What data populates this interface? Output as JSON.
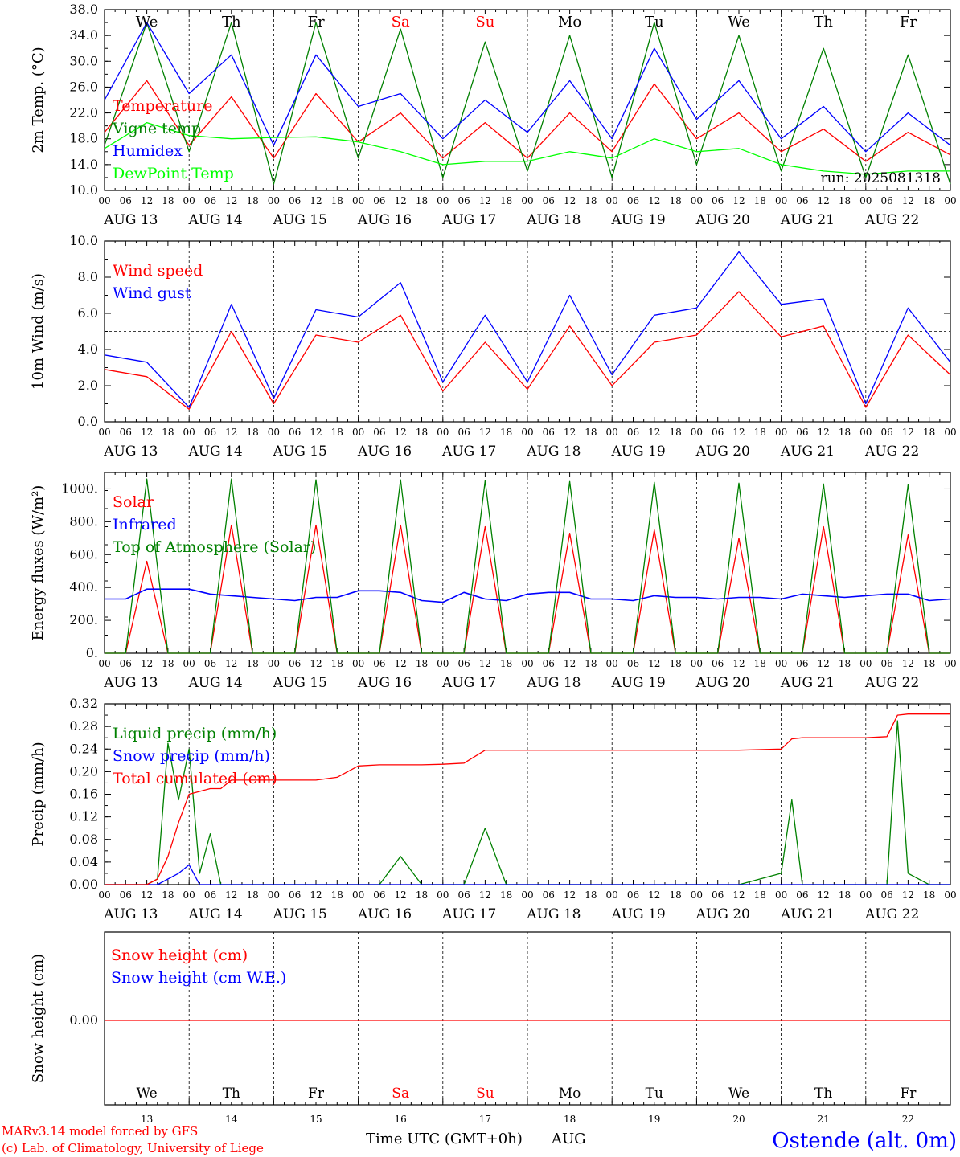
{
  "days": [
    {
      "dow": "We",
      "date": "AUG 13",
      "num": "13",
      "weekend": false
    },
    {
      "dow": "Th",
      "date": "AUG 14",
      "num": "14",
      "weekend": false
    },
    {
      "dow": "Fr",
      "date": "AUG 15",
      "num": "15",
      "weekend": false
    },
    {
      "dow": "Sa",
      "date": "AUG 16",
      "num": "16",
      "weekend": true
    },
    {
      "dow": "Su",
      "date": "AUG 17",
      "num": "17",
      "weekend": true
    },
    {
      "dow": "Mo",
      "date": "AUG 18",
      "num": "18",
      "weekend": false
    },
    {
      "dow": "Tu",
      "date": "AUG 19",
      "num": "19",
      "weekend": false
    },
    {
      "dow": "We",
      "date": "AUG 20",
      "num": "20",
      "weekend": false
    },
    {
      "dow": "Th",
      "date": "AUG 21",
      "num": "21",
      "weekend": false
    },
    {
      "dow": "Fr",
      "date": "AUG 22",
      "num": "22",
      "weekend": false
    }
  ],
  "hour_ticks": [
    "00",
    "06",
    "12",
    "18"
  ],
  "run_label": "run: 2025081318",
  "footer": {
    "credit1": "MARv3.14 model forced by GFS",
    "credit2": "(c) Lab. of Climatology, University of Liege",
    "xlabel": "Time UTC (GMT+0h)",
    "month": "AUG",
    "station": "Ostende (alt. 0m)"
  },
  "colors": {
    "red": "#ff0000",
    "green": "#008000",
    "blue": "#0000ff",
    "lightgreen": "#00ff00",
    "weekend": "#ff0000"
  },
  "chart_data": [
    {
      "type": "line",
      "ylabel": "2m Temp. (°C)",
      "ylim": [
        10,
        38
      ],
      "yticks": [
        "10.0",
        "14.0",
        "18.0",
        "22.0",
        "26.0",
        "30.0",
        "34.0",
        "38.0"
      ],
      "x_hours": [
        0,
        12,
        24,
        36,
        48,
        60,
        72,
        84,
        96,
        108,
        120,
        132,
        144,
        156,
        168,
        180,
        192,
        204,
        216,
        228,
        240
      ],
      "series": [
        {
          "name": "Temperature",
          "color": "#ff0000",
          "values": [
            19,
            27,
            17,
            24.5,
            15,
            25,
            17.5,
            22,
            15,
            20.5,
            15,
            22,
            16,
            26.5,
            18,
            22,
            16,
            19.5,
            14.5,
            19,
            15.5
          ]
        },
        {
          "name": "Vigne temp",
          "color": "#008000",
          "values": [
            17,
            36,
            16,
            36,
            11,
            36,
            15,
            35,
            12,
            33,
            13,
            34,
            12,
            36,
            14,
            34,
            13,
            32,
            12,
            31,
            11
          ]
        },
        {
          "name": "Humidex",
          "color": "#0000ff",
          "values": [
            24,
            36,
            25,
            31,
            17,
            31,
            23,
            25,
            18,
            24,
            19,
            27,
            18,
            32,
            21,
            27,
            18,
            23,
            16,
            22,
            17
          ]
        },
        {
          "name": "DewPoint Temp",
          "color": "#00ff00",
          "values": [
            16.5,
            20.5,
            18.5,
            18,
            18.2,
            18.3,
            17.5,
            16,
            14,
            14.5,
            14.5,
            16,
            15,
            18,
            16,
            16.5,
            14,
            13,
            12.5,
            13,
            13
          ]
        }
      ]
    },
    {
      "type": "line",
      "ylabel": "10m Wind (m/s)",
      "ylim": [
        0,
        10
      ],
      "yticks": [
        "0.0",
        "2.0",
        "4.0",
        "6.0",
        "8.0",
        "10.0"
      ],
      "x_hours": [
        0,
        12,
        24,
        36,
        48,
        60,
        72,
        84,
        96,
        108,
        120,
        132,
        144,
        156,
        168,
        180,
        192,
        204,
        216,
        228,
        240
      ],
      "series": [
        {
          "name": "Wind speed",
          "color": "#ff0000",
          "values": [
            2.9,
            2.5,
            0.7,
            5,
            1,
            4.8,
            4.4,
            5.9,
            1.7,
            4.4,
            1.8,
            5.3,
            2,
            4.4,
            4.8,
            7.2,
            4.7,
            5.3,
            0.8,
            4.8,
            2.6
          ]
        },
        {
          "name": "Wind gust",
          "color": "#0000ff",
          "values": [
            3.7,
            3.3,
            0.8,
            6.5,
            1.3,
            6.2,
            5.8,
            7.7,
            2.2,
            5.9,
            2.2,
            7,
            2.6,
            5.9,
            6.3,
            9.4,
            6.5,
            6.8,
            1,
            6.3,
            3.3
          ]
        }
      ]
    },
    {
      "type": "line",
      "ylabel": "Energy fluxes (W/m²)",
      "ylim": [
        0,
        1100
      ],
      "yticks": [
        "0.",
        "200.",
        "400.",
        "600.",
        "800.",
        "1000."
      ],
      "x_hours": [
        0,
        6,
        12,
        18,
        24,
        30,
        36,
        42,
        48,
        54,
        60,
        66,
        72,
        78,
        84,
        90,
        96,
        102,
        108,
        114,
        120,
        126,
        132,
        138,
        144,
        150,
        156,
        162,
        168,
        174,
        180,
        186,
        192,
        198,
        204,
        210,
        216,
        222,
        228,
        234,
        240
      ],
      "series": [
        {
          "name": "Solar",
          "color": "#ff0000",
          "values": [
            0,
            0,
            560,
            0,
            0,
            0,
            780,
            0,
            0,
            0,
            780,
            0,
            0,
            0,
            780,
            0,
            0,
            0,
            770,
            0,
            0,
            0,
            730,
            0,
            0,
            0,
            750,
            0,
            0,
            0,
            700,
            0,
            0,
            0,
            770,
            0,
            0,
            0,
            720,
            0,
            0
          ]
        },
        {
          "name": "Infrared",
          "color": "#0000ff",
          "values": [
            330,
            330,
            390,
            390,
            390,
            360,
            350,
            340,
            330,
            320,
            340,
            340,
            380,
            380,
            370,
            320,
            310,
            370,
            330,
            320,
            360,
            370,
            370,
            330,
            330,
            320,
            350,
            340,
            340,
            330,
            340,
            340,
            330,
            360,
            350,
            340,
            350,
            360,
            360,
            320,
            330
          ]
        },
        {
          "name": "Top of Atmosphere (Solar)",
          "color": "#008000",
          "values": [
            0,
            0,
            1060,
            0,
            0,
            0,
            1060,
            0,
            0,
            0,
            1055,
            0,
            0,
            0,
            1055,
            0,
            0,
            0,
            1050,
            0,
            0,
            0,
            1045,
            0,
            0,
            0,
            1040,
            0,
            0,
            0,
            1035,
            0,
            0,
            0,
            1030,
            0,
            0,
            0,
            1025,
            0,
            0
          ]
        }
      ]
    },
    {
      "type": "line",
      "ylabel": "Precip (mm/h)",
      "ylim": [
        0,
        0.32
      ],
      "yticks": [
        "0.00",
        "0.04",
        "0.08",
        "0.12",
        "0.16",
        "0.20",
        "0.24",
        "0.28",
        "0.32"
      ],
      "x_hours": [
        0,
        12,
        15,
        18,
        21,
        24,
        27,
        30,
        33,
        36,
        42,
        48,
        60,
        66,
        72,
        78,
        84,
        90,
        96,
        102,
        108,
        114,
        120,
        144,
        180,
        192,
        195,
        198,
        204,
        210,
        216,
        222,
        225,
        228,
        234,
        240
      ],
      "series": [
        {
          "name": "Liquid precip (mm/h)",
          "color": "#008000",
          "values": [
            0,
            0,
            0.01,
            0.25,
            0.15,
            0.24,
            0.02,
            0.09,
            0,
            0,
            0,
            0,
            0,
            0,
            0,
            0,
            0.05,
            0,
            0,
            0,
            0.1,
            0,
            0,
            0,
            0,
            0.02,
            0.15,
            0,
            0,
            0,
            0,
            0,
            0.29,
            0.02,
            0,
            0
          ]
        },
        {
          "name": "Snow precip (mm/h)",
          "color": "#0000ff",
          "values": [
            0,
            0,
            0,
            0.01,
            0.02,
            0.035,
            0,
            0,
            0,
            0,
            0,
            0,
            0,
            0,
            0,
            0,
            0,
            0,
            0,
            0,
            0,
            0,
            0,
            0,
            0,
            0,
            0,
            0,
            0,
            0,
            0,
            0,
            0,
            0,
            0,
            0
          ]
        },
        {
          "name": "Total cumulated (cm)",
          "color": "#ff0000",
          "values": [
            0,
            0,
            0.01,
            0.05,
            0.11,
            0.16,
            0.165,
            0.17,
            0.17,
            0.185,
            0.185,
            0.185,
            0.185,
            0.19,
            0.21,
            0.212,
            0.212,
            0.212,
            0.213,
            0.215,
            0.238,
            0.238,
            0.238,
            0.238,
            0.238,
            0.24,
            0.258,
            0.26,
            0.26,
            0.26,
            0.26,
            0.262,
            0.3,
            0.302,
            0.302,
            0.302
          ]
        }
      ]
    },
    {
      "type": "line",
      "ylabel": "Snow height (cm)",
      "yticks": [
        "0.00"
      ],
      "series": [
        {
          "name": "Snow height (cm)",
          "color": "#ff0000",
          "values": [
            0,
            0
          ]
        },
        {
          "name": "Snow height (cm W.E.)",
          "color": "#0000ff",
          "values": [
            0,
            0
          ]
        }
      ]
    }
  ]
}
